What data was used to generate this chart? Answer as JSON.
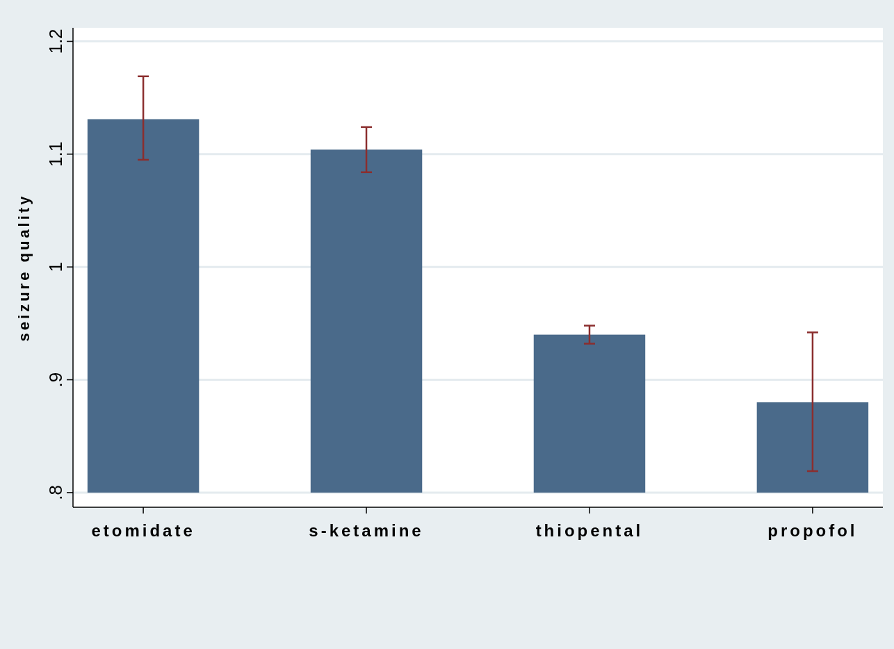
{
  "chart_data": {
    "type": "bar",
    "ylabel": "seizure quality",
    "categories": [
      "etomidate",
      "s-ketamine",
      "thiopental",
      "propofol"
    ],
    "base": [
      0.8,
      0.8,
      0.8,
      0.8
    ],
    "values": [
      0.331,
      0.304,
      0.14,
      0.08
    ],
    "errors": [
      [
        1.095,
        1.169
      ],
      [
        1.084,
        1.124
      ],
      [
        0.932,
        0.948
      ],
      [
        0.819,
        0.942
      ]
    ],
    "color": "#4a6a8a",
    "ylim": [
      0.787,
      1.212
    ],
    "yticks": [
      {
        "value": 0.8,
        "label": ".8"
      },
      {
        "value": 0.9,
        "label": ".9"
      },
      1,
      1.1,
      1.2
    ],
    "grid": "y"
  }
}
